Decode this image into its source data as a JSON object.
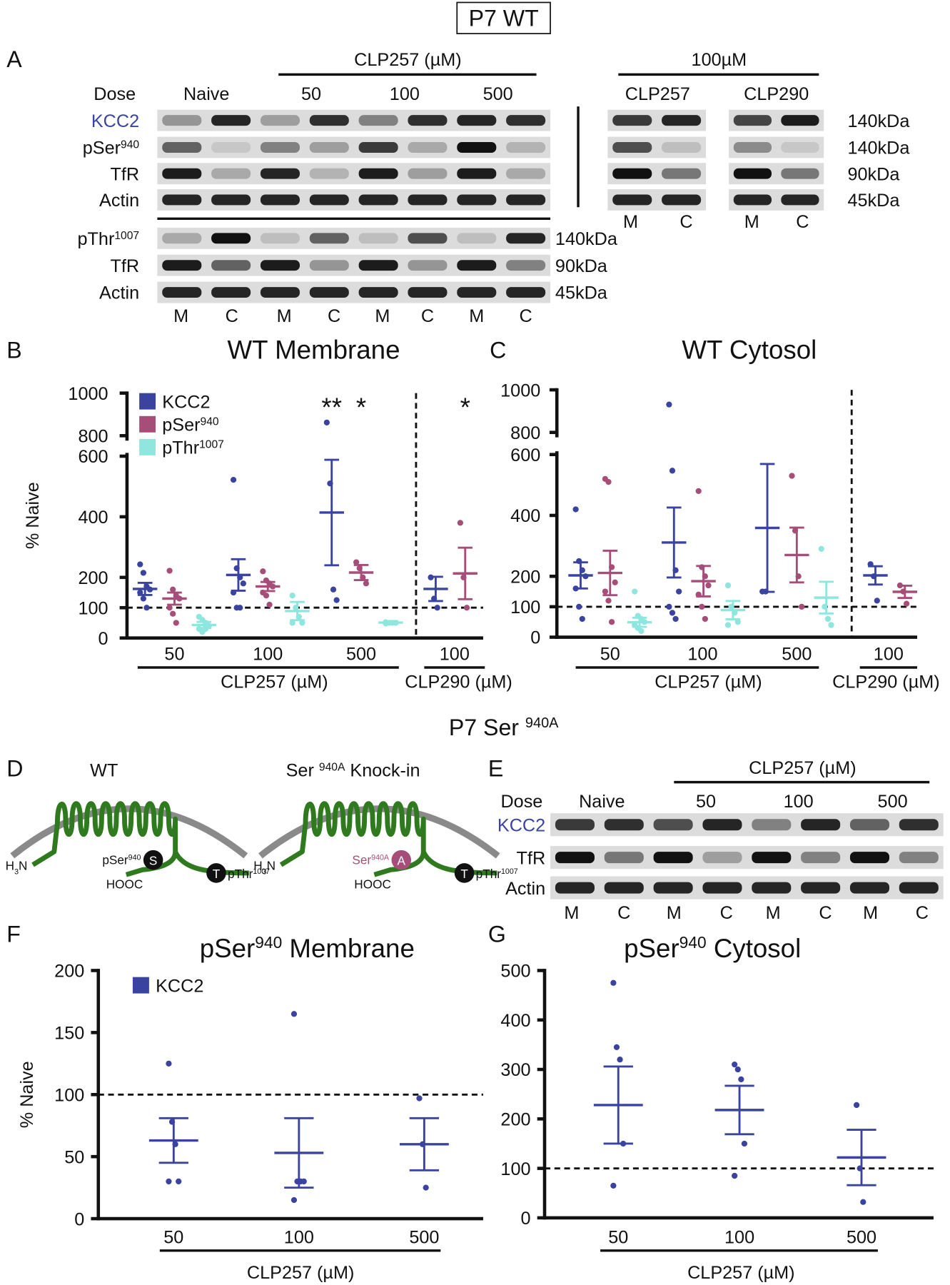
{
  "title": "P7 WT",
  "panel_a": {
    "letter": "A",
    "treatment": "CLP257 (µM)",
    "treatment_right": "100µM",
    "dose_label": "Dose",
    "doses": [
      "Naive",
      "50",
      "100",
      "500"
    ],
    "right_doses": [
      "CLP257",
      "CLP290"
    ],
    "rows": [
      "KCC2",
      {
        "text": "pSer",
        "sup": "940"
      },
      "TfR",
      "Actin"
    ],
    "sizes": [
      "140kDa",
      "140kDa",
      "90kDa",
      "45kDa"
    ],
    "lower_rows": [
      {
        "text": "pThr",
        "sup": "1007"
      },
      "TfR",
      "Actin"
    ],
    "lower_sizes": [
      "140kDa",
      "90kDa",
      "45kDa"
    ],
    "lanes": [
      "M",
      "C",
      "M",
      "C",
      "M",
      "C",
      "M",
      "C"
    ],
    "right_lanes": [
      "M",
      "C",
      "M",
      "C"
    ]
  },
  "section_title": {
    "text": "P7 Ser ",
    "sup": "940A"
  },
  "panel_d": {
    "letter": "D",
    "wt_label": "WT",
    "ki_label": {
      "text": "Ser ",
      "sup": "940A",
      "after": " Knock-in"
    },
    "wt": {
      "n_term": {
        "text": "H",
        "sub": "3",
        "after": "N"
      },
      "c_term": "HOOC",
      "site": {
        "text": "pSer",
        "sup": "940"
      },
      "site_symbol": "S",
      "thr": {
        "text": "pThr",
        "sup": "1007"
      },
      "thr_symbol": "T"
    },
    "ki": {
      "n_term": {
        "text": "H",
        "sub": "3",
        "after": "N"
      },
      "c_term": "HOOC",
      "site": {
        "text": "Ser",
        "sup": "940A"
      },
      "site_symbol": "A",
      "thr": {
        "text": "pThr",
        "sup": "1007"
      },
      "thr_symbol": "T"
    }
  },
  "panel_e": {
    "letter": "E",
    "treatment": "CLP257 (µM)",
    "dose_label": "Dose",
    "doses": [
      "Naive",
      "50",
      "100",
      "500"
    ],
    "rows": [
      "KCC2",
      "TfR",
      "Actin"
    ],
    "lanes": [
      "M",
      "C",
      "M",
      "C",
      "M",
      "C",
      "M",
      "C"
    ]
  },
  "chart_data": [
    {
      "type": "dotplot",
      "panel": "B",
      "title": "WT Membrane",
      "ylabel": "% Naive",
      "categories": [
        "50",
        "100",
        "500",
        "100"
      ],
      "group_labels": [
        "CLP257 (µM)",
        "CLP290 (µM)"
      ],
      "ylim": [
        0,
        1000
      ],
      "yticks": [
        0,
        100,
        200,
        400,
        600,
        800,
        1000
      ],
      "axis_break": [
        600,
        800
      ],
      "reference_line": 100,
      "legend": "upper left",
      "series": [
        {
          "name": "KCC2",
          "color": "#3a44a0",
          "values": [
            162,
            208,
            414,
            162
          ],
          "errors": [
            20,
            52,
            174,
            40
          ],
          "points": [
            [
              243,
              215,
              170,
              160,
              150,
              130,
              100
            ],
            [
              522,
              230,
              200,
              180,
              150,
              100,
              100
            ],
            [
              862,
              510,
              160,
              125
            ],
            [
              200,
              130,
              100
            ]
          ],
          "value_annotations": [
            null,
            null,
            "**",
            null
          ]
        },
        {
          "name": {
            "text": "pSer",
            "sup": "940"
          },
          "color": "#a64d79",
          "values": [
            130,
            170,
            216,
            213
          ],
          "errors": [
            20,
            15,
            25,
            85
          ],
          "points": [
            [
              222,
              160,
              140,
              130,
              100,
              80,
              50
            ],
            [
              220,
              190,
              180,
              170,
              150,
              140,
              110
            ],
            [
              250,
              230,
              200,
              180
            ],
            [
              380,
              200,
              100
            ]
          ],
          "value_annotations": [
            null,
            null,
            "*",
            "*"
          ]
        },
        {
          "name": {
            "text": "pThr",
            "sup": "1007"
          },
          "color": "#8fe6de",
          "values": [
            43,
            89,
            51,
            null
          ],
          "errors": [
            10,
            30,
            5,
            null
          ],
          "points": [
            [
              70,
              60,
              50,
              40,
              30,
              20,
              30
            ],
            [
              140,
              100,
              70,
              50,
              50
            ],
            [
              52,
              50,
              50,
              50,
              48
            ],
            null
          ]
        }
      ]
    },
    {
      "type": "dotplot",
      "panel": "C",
      "title": "WT Cytosol",
      "categories": [
        "50",
        "100",
        "500",
        "100"
      ],
      "group_labels": [
        "CLP257 (µM)",
        "CLP290 (µM)"
      ],
      "ylim": [
        0,
        1000
      ],
      "yticks": [
        0,
        100,
        200,
        400,
        600,
        800,
        1000
      ],
      "axis_break": [
        600,
        800
      ],
      "reference_line": 100,
      "series": [
        {
          "color": "#3a44a0",
          "values": [
            203,
            311,
            359,
            203
          ],
          "errors": [
            43,
            115,
            210,
            30
          ],
          "points": [
            [
              420,
              250,
              220,
              200,
              160,
              100,
              60
            ],
            [
              931,
              547,
              220,
              150,
              100,
              80,
              60
            ],
            [
              150,
              150
            ],
            [
              240,
              200,
              120
            ]
          ]
        },
        {
          "color": "#a64d79",
          "values": [
            211,
            184,
            270,
            149
          ],
          "errors": [
            73,
            50,
            90,
            20
          ],
          "points": [
            [
              520,
              510,
              230,
              180,
              150,
              120,
              50
            ],
            [
              480,
              230,
              200,
              170,
              140,
              100,
              60
            ],
            [
              530,
              350,
              200,
              100
            ],
            [
              170,
              150,
              110
            ]
          ]
        },
        {
          "color": "#8fe6de",
          "values": [
            49,
            89,
            130,
            null
          ],
          "errors": [
            15,
            30,
            52,
            null
          ],
          "points": [
            [
              150,
              70,
              60,
              50,
              40,
              30,
              20
            ],
            [
              170,
              100,
              80,
              50,
              40
            ],
            [
              290,
              100,
              60,
              40
            ],
            null
          ]
        }
      ]
    },
    {
      "type": "dotplot",
      "panel": "F",
      "title": {
        "text": "pSer",
        "sup": "940",
        "after": " Membrane"
      },
      "ylabel": "% Naive",
      "categories": [
        "50",
        "100",
        "500"
      ],
      "group_labels": [
        "CLP257 (µM)"
      ],
      "ylim": [
        0,
        200
      ],
      "yticks": [
        0,
        50,
        100,
        150,
        200
      ],
      "reference_line": 100,
      "legend": "upper left",
      "series": [
        {
          "name": "KCC2",
          "color": "#3a44a0",
          "values": [
            63,
            53,
            60
          ],
          "errors": [
            18,
            28,
            21
          ],
          "points": [
            [
              125,
              78,
              60,
              30,
              30
            ],
            [
              165,
              30,
              30,
              30,
              15
            ],
            [
              97,
              60,
              25
            ]
          ]
        }
      ]
    },
    {
      "type": "dotplot",
      "panel": "G",
      "title": {
        "text": "pSer",
        "sup": "940",
        "after": " Cytosol"
      },
      "categories": [
        "50",
        "100",
        "500"
      ],
      "group_labels": [
        "CLP257 (µM)"
      ],
      "ylim": [
        0,
        500
      ],
      "yticks": [
        0,
        100,
        200,
        300,
        400,
        500
      ],
      "reference_line": 100,
      "series": [
        {
          "color": "#3a44a0",
          "values": [
            228,
            218,
            122
          ],
          "errors": [
            78,
            49,
            56
          ],
          "points": [
            [
              475,
              345,
              320,
              150,
              65
            ],
            [
              310,
              300,
              280,
              150,
              85
            ],
            [
              228,
              100,
              32
            ]
          ]
        }
      ]
    }
  ]
}
